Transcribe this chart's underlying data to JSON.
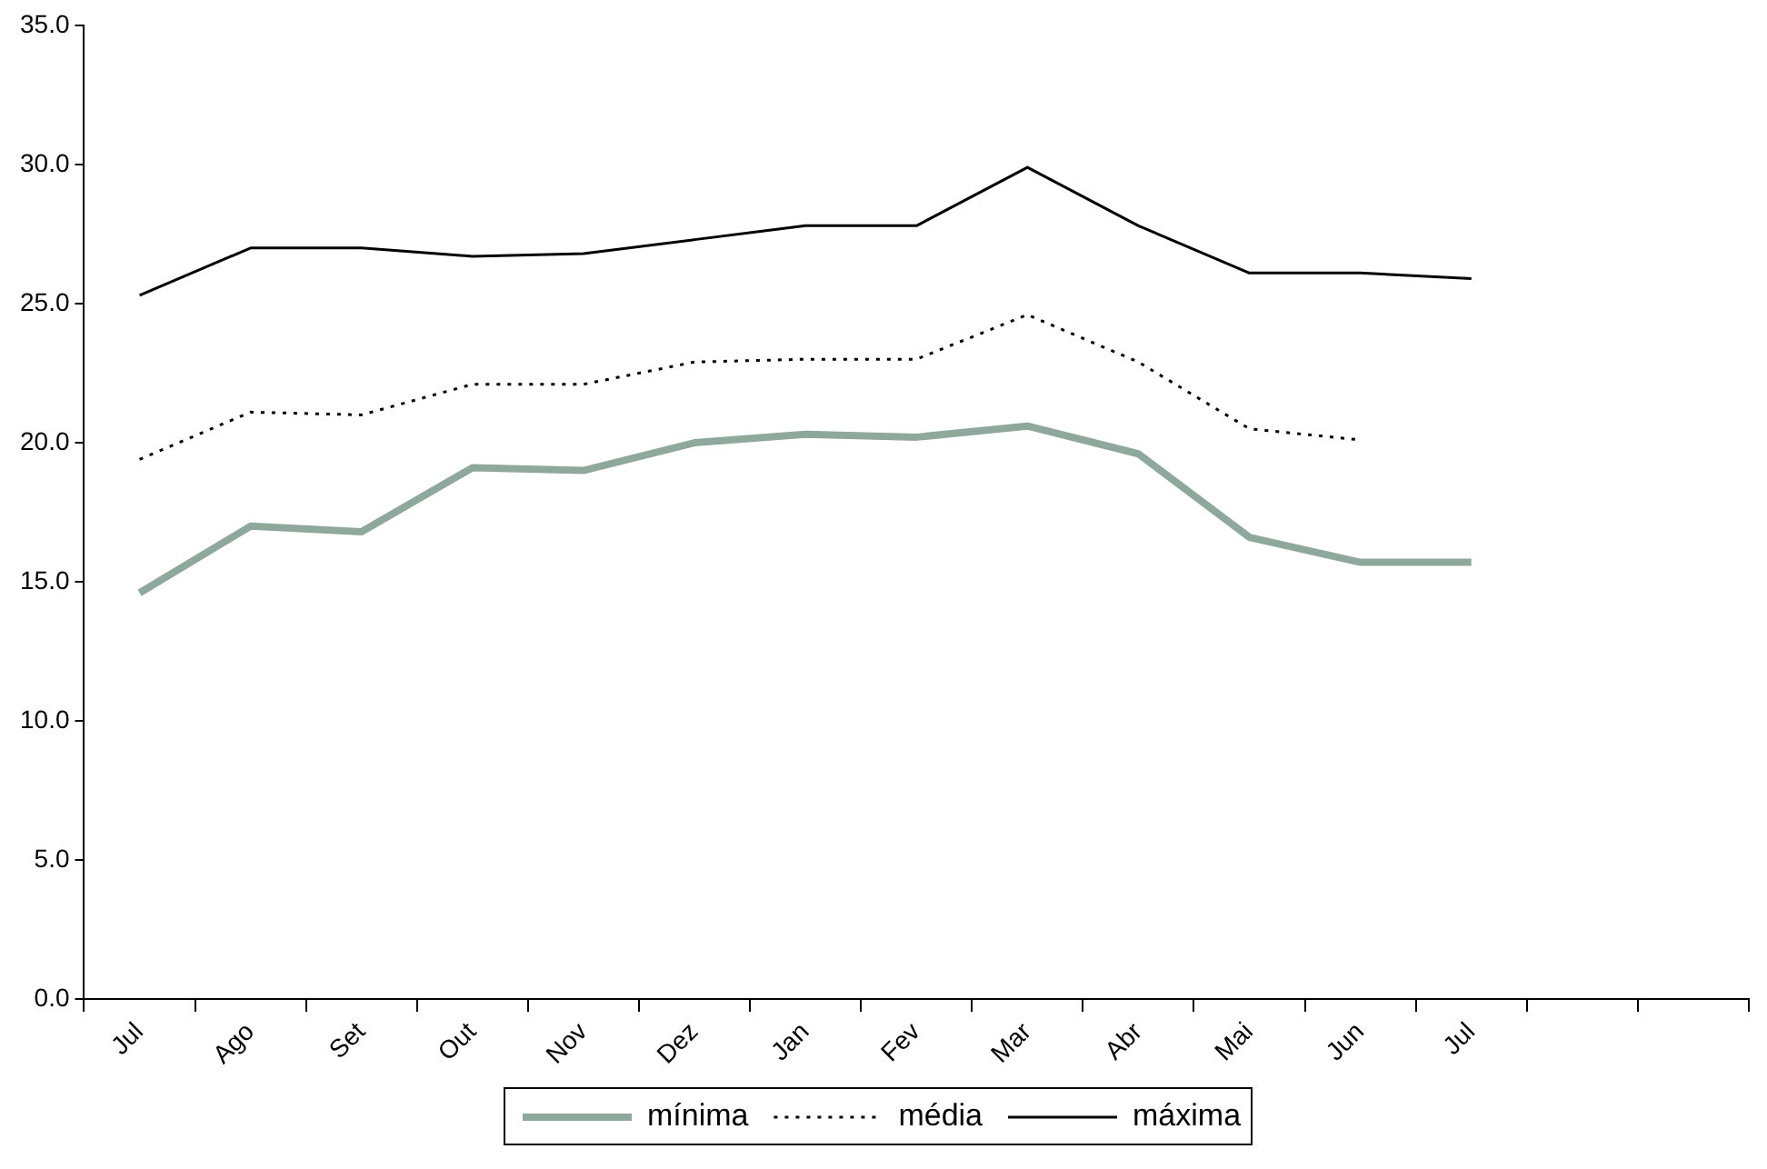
{
  "chart_data": {
    "type": "line",
    "categories": [
      "Jul",
      "Ago",
      "Set",
      "Out",
      "Nov",
      "Dez",
      "Jan",
      "Fev",
      "Mar",
      "Abr",
      "Mai",
      "Jun",
      "Jul",
      null,
      null
    ],
    "series": [
      {
        "name": "mínima",
        "color": "#8fa89c",
        "line_style": "solid",
        "values": [
          14.6,
          17.0,
          16.8,
          19.1,
          19.0,
          20.0,
          20.3,
          20.2,
          20.6,
          19.6,
          16.6,
          15.7,
          15.7,
          null,
          null
        ]
      },
      {
        "name": "média",
        "color": "#000000",
        "line_style": "dotted",
        "values": [
          19.4,
          21.1,
          21.0,
          22.1,
          22.1,
          22.9,
          23.0,
          23.0,
          24.6,
          22.9,
          20.5,
          20.1,
          null,
          null,
          null
        ]
      },
      {
        "name": "máxima",
        "color": "#000000",
        "line_style": "solid",
        "values": [
          25.3,
          27.0,
          27.0,
          26.7,
          26.8,
          27.3,
          27.8,
          27.8,
          29.9,
          27.8,
          26.1,
          26.1,
          25.9,
          null,
          null
        ]
      }
    ],
    "ylim": [
      0,
      35
    ],
    "yticks": [
      {
        "value": 0,
        "label": "0.0"
      },
      {
        "value": 5,
        "label": "5.0"
      },
      {
        "value": 10,
        "label": "10.0"
      },
      {
        "value": 15,
        "label": "15.0"
      },
      {
        "value": 20,
        "label": "20.0"
      },
      {
        "value": 25,
        "label": "25.0"
      },
      {
        "value": 30,
        "label": "30.0"
      },
      {
        "value": 35,
        "label": "35.0"
      }
    ],
    "grid": false,
    "legend": "bottom",
    "marker": "none"
  }
}
